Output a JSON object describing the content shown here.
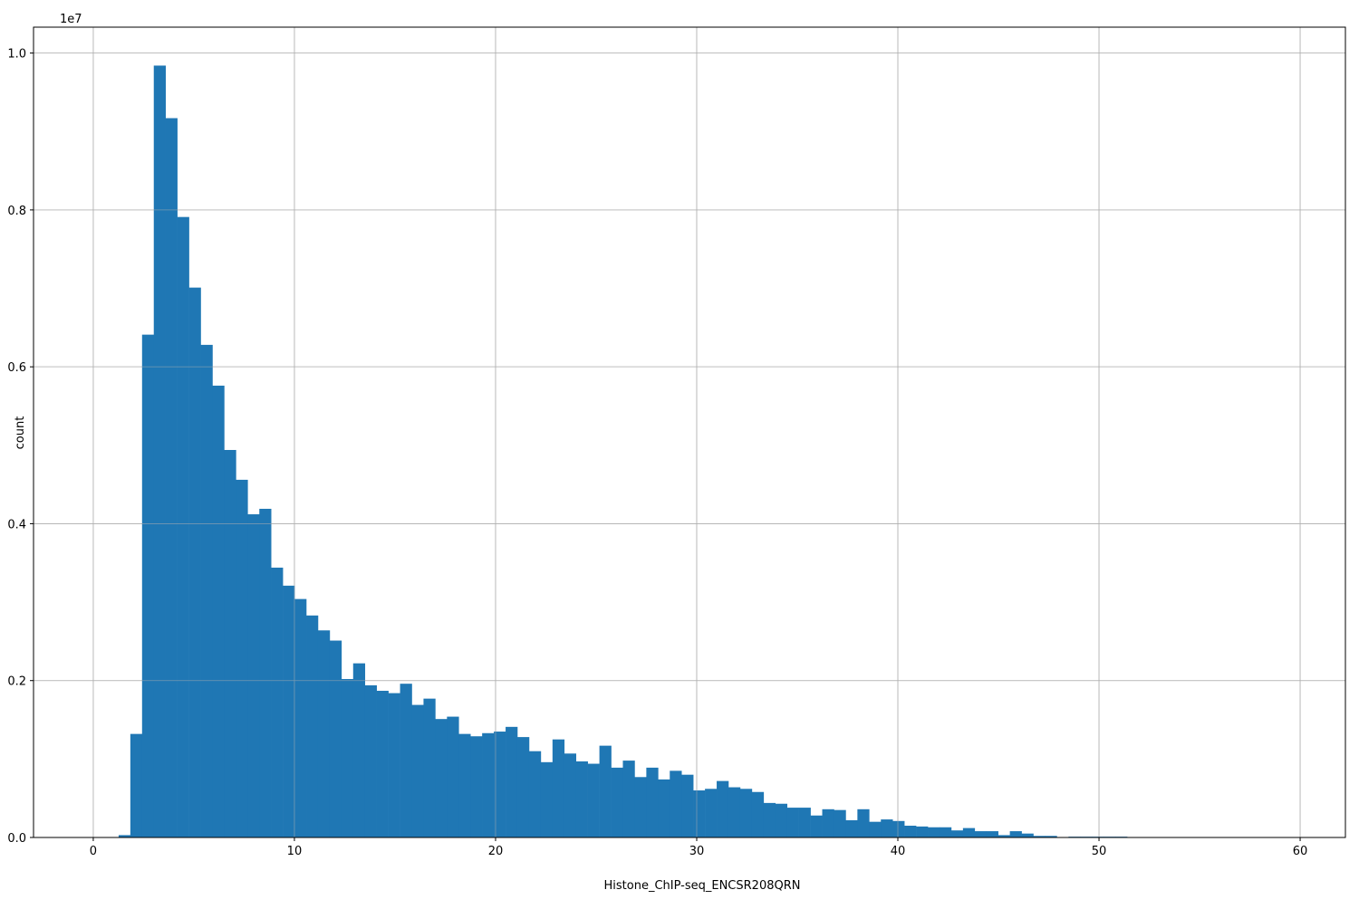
{
  "chart_data": {
    "type": "bar",
    "subtype": "histogram",
    "title": "",
    "xlabel": "Histone_ChIP-seq_ENCSR208QRN",
    "ylabel": "count",
    "y_offset_label": "1e7",
    "xlim": [
      -2.97,
      62.25
    ],
    "ylim": [
      0,
      1.033
    ],
    "x_ticks": [
      0,
      10,
      20,
      30,
      40,
      50,
      60
    ],
    "x_tick_labels": [
      "0",
      "10",
      "20",
      "30",
      "40",
      "50",
      "60"
    ],
    "y_ticks": [
      0,
      0.2,
      0.4,
      0.6,
      0.8,
      1.0
    ],
    "y_tick_labels": [
      "0.0",
      "0.2",
      "0.4",
      "0.6",
      "0.8",
      "1.0"
    ],
    "grid": true,
    "color": "#1f77b4",
    "bin_start": 1.26,
    "bin_width": 0.583,
    "values": [
      0.003,
      0.132,
      0.641,
      0.984,
      0.917,
      0.791,
      0.701,
      0.628,
      0.576,
      0.494,
      0.456,
      0.412,
      0.419,
      0.344,
      0.321,
      0.304,
      0.283,
      0.264,
      0.251,
      0.202,
      0.222,
      0.194,
      0.187,
      0.184,
      0.196,
      0.169,
      0.177,
      0.151,
      0.154,
      0.132,
      0.129,
      0.133,
      0.135,
      0.141,
      0.128,
      0.11,
      0.096,
      0.125,
      0.107,
      0.097,
      0.094,
      0.117,
      0.089,
      0.098,
      0.077,
      0.089,
      0.074,
      0.085,
      0.08,
      0.06,
      0.062,
      0.072,
      0.064,
      0.062,
      0.058,
      0.044,
      0.043,
      0.038,
      0.038,
      0.028,
      0.036,
      0.035,
      0.022,
      0.036,
      0.02,
      0.023,
      0.021,
      0.015,
      0.014,
      0.013,
      0.013,
      0.009,
      0.012,
      0.008,
      0.008,
      0.003,
      0.008,
      0.005,
      0.002,
      0.002,
      0.0005,
      0.001,
      0.001,
      0.001,
      0.001,
      0.001,
      0,
      0,
      0,
      0,
      0,
      0,
      0,
      0,
      0,
      0,
      0,
      0,
      0,
      0
    ]
  }
}
